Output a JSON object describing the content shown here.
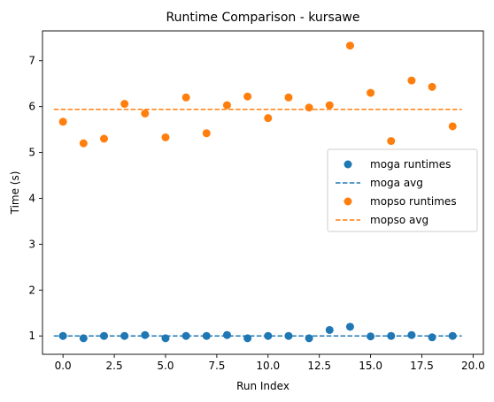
{
  "chart_data": {
    "type": "scatter",
    "title": "Runtime Comparison - kursawe",
    "xlabel": "Run Index",
    "ylabel": "Time (s)",
    "xlim": [
      -1.0,
      20.5
    ],
    "ylim": [
      0.6,
      7.65
    ],
    "xticks": [
      0,
      2.5,
      5,
      7.5,
      10,
      12.5,
      15,
      17.5,
      20
    ],
    "xtick_labels": [
      "0.0",
      "2.5",
      "5.0",
      "7.5",
      "10.0",
      "12.5",
      "15.0",
      "17.5",
      "20.0"
    ],
    "yticks": [
      1,
      2,
      3,
      4,
      5,
      6,
      7
    ],
    "ytick_labels": [
      "1",
      "2",
      "3",
      "4",
      "5",
      "6",
      "7"
    ],
    "grid": false,
    "legend_position": "center-right",
    "series": [
      {
        "name": "moga runtimes",
        "kind": "scatter",
        "color": "#1f77b4",
        "x": [
          0,
          1,
          2,
          3,
          4,
          5,
          6,
          7,
          8,
          9,
          10,
          11,
          12,
          13,
          14,
          15,
          16,
          17,
          18,
          19
        ],
        "y": [
          1.0,
          0.95,
          1.0,
          1.0,
          1.02,
          0.95,
          1.0,
          1.0,
          1.02,
          0.95,
          1.0,
          1.0,
          0.95,
          1.13,
          1.2,
          0.99,
          1.0,
          1.02,
          0.97,
          1.0
        ]
      },
      {
        "name": "moga avg",
        "kind": "hline",
        "color": "#1f77b4",
        "value": 1.0,
        "x_range": [
          -0.45,
          19.45
        ]
      },
      {
        "name": "mopso runtimes",
        "kind": "scatter",
        "color": "#ff7f0e",
        "x": [
          0,
          1,
          2,
          3,
          4,
          5,
          6,
          7,
          8,
          9,
          10,
          11,
          12,
          13,
          14,
          15,
          16,
          17,
          18,
          19
        ],
        "y": [
          5.67,
          5.2,
          5.3,
          6.06,
          5.85,
          5.33,
          6.2,
          5.42,
          6.03,
          6.22,
          5.75,
          6.2,
          5.98,
          6.03,
          7.33,
          6.3,
          5.25,
          6.57,
          6.43,
          5.57
        ]
      },
      {
        "name": "mopso avg",
        "kind": "hline",
        "color": "#ff7f0e",
        "value": 5.94,
        "x_range": [
          -0.45,
          19.45
        ]
      }
    ]
  }
}
